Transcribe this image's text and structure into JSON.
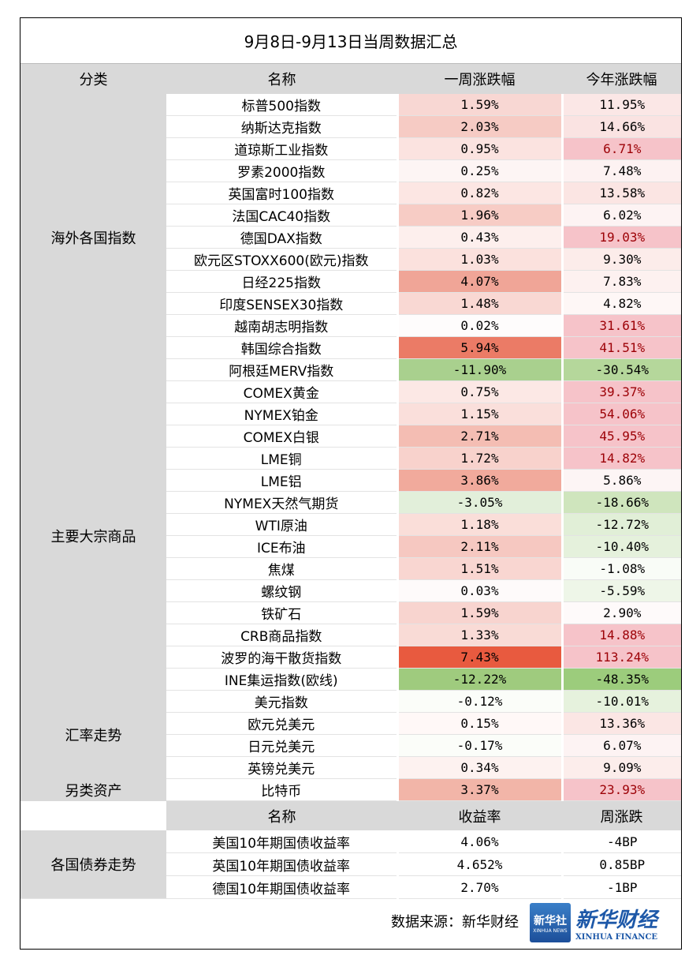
{
  "title": "9月8日-9月13日当周数据汇总",
  "header": [
    "分类",
    "名称",
    "一周涨跌幅",
    "今年涨跌幅"
  ],
  "groups": [
    {
      "category": "海外各国指数",
      "rows": [
        {
          "name": "标普500指数",
          "week": "1.59%",
          "ytd": "11.95%",
          "week_color": "#f8d7d3",
          "ytd_color": "#fbe7e6"
        },
        {
          "name": "纳斯达克指数",
          "week": "2.03%",
          "ytd": "14.66%",
          "week_color": "#f6cbc4",
          "ytd_color": "#fae3e2"
        },
        {
          "name": "道琼斯工业指数",
          "week": "0.95%",
          "ytd": "6.71%",
          "week_color": "#fbe3e0",
          "ytd_color": "#f6c3c9",
          "ytd_text_color": "#9c0006"
        },
        {
          "name": "罗素2000指数",
          "week": "0.25%",
          "ytd": "7.48%",
          "week_color": "#fdf5f4",
          "ytd_color": "#fdf2f2"
        },
        {
          "name": "英国富时100指数",
          "week": "0.82%",
          "ytd": "13.58%",
          "week_color": "#fce6e3",
          "ytd_color": "#fbe5e3"
        },
        {
          "name": "法国CAC40指数",
          "week": "1.96%",
          "ytd": "6.02%",
          "week_color": "#f7ccc5",
          "ytd_color": "#fdf3f3"
        },
        {
          "name": "德国DAX指数",
          "week": "0.43%",
          "ytd": "19.03%",
          "week_color": "#fdefed",
          "ytd_color": "#f6c3c9",
          "ytd_text_color": "#9c0006"
        },
        {
          "name": "欧元区STOXX600(欧元)指数",
          "week": "1.03%",
          "ytd": "9.30%",
          "week_color": "#fbe1dd",
          "ytd_color": "#fcecea"
        },
        {
          "name": "日经225指数",
          "week": "4.07%",
          "ytd": "7.83%",
          "week_color": "#f0a597",
          "ytd_color": "#fdf1f0"
        },
        {
          "name": "印度SENSEX30指数",
          "week": "1.48%",
          "ytd": "4.82%",
          "week_color": "#f9d8d3",
          "ytd_color": "#fef7f6"
        },
        {
          "name": "越南胡志明指数",
          "week": "0.02%",
          "ytd": "31.61%",
          "week_color": "#fefcfc",
          "ytd_color": "#f6c3c9",
          "ytd_text_color": "#9c0006"
        },
        {
          "name": "韩国综合指数",
          "week": "5.94%",
          "ytd": "41.51%",
          "week_color": "#eb7b66",
          "ytd_color": "#f6c3c9",
          "ytd_text_color": "#9c0006"
        },
        {
          "name": "阿根廷MERV指数",
          "week": "-11.90%",
          "ytd": "-30.54%",
          "week_color": "#a9d08e",
          "ytd_color": "#b5d79b"
        }
      ]
    },
    {
      "category": "主要大宗商品",
      "rows": [
        {
          "name": "COMEX黄金",
          "week": "0.75%",
          "ytd": "39.37%",
          "week_color": "#fce8e5",
          "ytd_color": "#f6c3c9",
          "ytd_text_color": "#9c0006"
        },
        {
          "name": "NYMEX铂金",
          "week": "1.15%",
          "ytd": "54.06%",
          "week_color": "#fadfdb",
          "ytd_color": "#f6c3c9",
          "ytd_text_color": "#9c0006"
        },
        {
          "name": "COMEX白银",
          "week": "2.71%",
          "ytd": "45.95%",
          "week_color": "#f4bdb3",
          "ytd_color": "#f6c3c9",
          "ytd_text_color": "#9c0006"
        },
        {
          "name": "LME铜",
          "week": "1.72%",
          "ytd": "14.82%",
          "week_color": "#f8d2cc",
          "ytd_color": "#f6c3c9",
          "ytd_text_color": "#9c0006"
        },
        {
          "name": "LME铝",
          "week": "3.86%",
          "ytd": "5.86%",
          "week_color": "#f1aa9c",
          "ytd_color": "#fdf5f5"
        },
        {
          "name": "NYMEX天然气期货",
          "week": "-3.05%",
          "ytd": "-18.66%",
          "week_color": "#e2efda",
          "ytd_color": "#cfe5bd"
        },
        {
          "name": "WTI原油",
          "week": "1.18%",
          "ytd": "-12.72%",
          "week_color": "#faded9",
          "ytd_color": "#e1efd7"
        },
        {
          "name": "ICE布油",
          "week": "2.11%",
          "ytd": "-10.40%",
          "week_color": "#f6c8c1",
          "ytd_color": "#e5f1dc"
        },
        {
          "name": "焦煤",
          "week": "1.51%",
          "ytd": "-1.08%",
          "week_color": "#f9d6d1",
          "ytd_color": "#f9fcf7"
        },
        {
          "name": "螺纹钢",
          "week": "0.03%",
          "ytd": "-5.59%",
          "week_color": "#fefafa",
          "ytd_color": "#eef6e8"
        },
        {
          "name": "铁矿石",
          "week": "1.59%",
          "ytd": "2.90%",
          "week_color": "#f8d4cf",
          "ytd_color": "#fefafa"
        },
        {
          "name": "CRB商品指数",
          "week": "1.33%",
          "ytd": "14.88%",
          "week_color": "#f9dbd6",
          "ytd_color": "#f6c3c9",
          "ytd_text_color": "#9c0006"
        },
        {
          "name": "波罗的海干散货指数",
          "week": "7.43%",
          "ytd": "113.24%",
          "week_color": "#e85a3f",
          "ytd_color": "#f6c3c9",
          "ytd_text_color": "#9c0006"
        },
        {
          "name": "INE集运指数(欧线)",
          "week": "-12.22%",
          "ytd": "-48.35%",
          "week_color": "#9fcb7e",
          "ytd_color": "#9ccc7c"
        }
      ]
    },
    {
      "category": "汇率走势",
      "rows": [
        {
          "name": "美元指数",
          "week": "-0.12%",
          "ytd": "-10.01%",
          "week_color": "#fbfdf9",
          "ytd_color": "#e6f2dd"
        },
        {
          "name": "欧元兑美元",
          "week": "0.15%",
          "ytd": "13.36%",
          "week_color": "#fff8f7",
          "ytd_color": "#fbe6e4"
        },
        {
          "name": "日元兑美元",
          "week": "-0.17%",
          "ytd": "6.07%",
          "week_color": "#fbfdf9",
          "ytd_color": "#fdf3f3"
        },
        {
          "name": "英镑兑美元",
          "week": "0.34%",
          "ytd": "9.09%",
          "week_color": "#fdf2f0",
          "ytd_color": "#fcedeb"
        }
      ]
    },
    {
      "category": "另类资产",
      "rows": [
        {
          "name": "比特币",
          "week": "3.37%",
          "ytd": "23.93%",
          "week_color": "#f2b5a8",
          "ytd_color": "#f6c3c9",
          "ytd_text_color": "#9c0006"
        }
      ]
    }
  ],
  "bonds": {
    "category": "各国债券走势",
    "header": [
      "名称",
      "收益率",
      "周涨跌"
    ],
    "rows": [
      {
        "name": "美国10年期国债收益率",
        "yield": "4.06%",
        "change": "-4BP"
      },
      {
        "name": "英国10年期国债收益率",
        "yield": "4.652%",
        "change": "0.85BP"
      },
      {
        "name": "德国10年期国债收益率",
        "yield": "2.70%",
        "change": "-1BP"
      }
    ]
  },
  "footer": {
    "source": "数据来源：新华财经",
    "badge": "新华社",
    "badge_sub": "XINHUA NEWS",
    "brand": "新华财经",
    "brand_sub": "XINHUA FINANCE"
  }
}
